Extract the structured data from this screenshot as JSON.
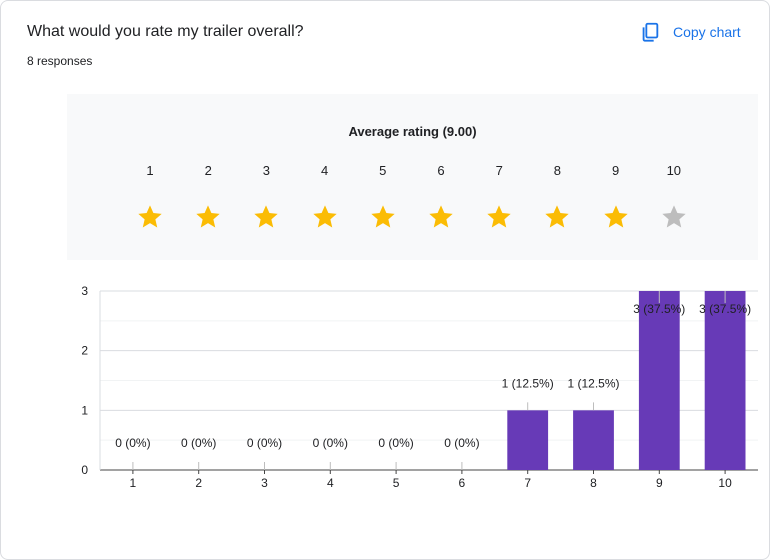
{
  "question": {
    "title": "What would you rate my trailer overall?",
    "responses": "8 responses"
  },
  "toolbar": {
    "copy_chart_label": "Copy chart",
    "copy_icon": "copy-icon"
  },
  "rating_summary": {
    "title": "Average rating (9.00)",
    "filled_stars": 9,
    "star_color": "#fbbc04",
    "empty_star_color": "#bdbdbd",
    "scale": [
      "1",
      "2",
      "3",
      "4",
      "5",
      "6",
      "7",
      "8",
      "9",
      "10"
    ]
  },
  "chart_data": {
    "type": "bar",
    "categories": [
      "1",
      "2",
      "3",
      "4",
      "5",
      "6",
      "7",
      "8",
      "9",
      "10"
    ],
    "values": [
      0,
      0,
      0,
      0,
      0,
      0,
      1,
      1,
      3,
      3
    ],
    "data_labels": [
      "0 (0%)",
      "0 (0%)",
      "0 (0%)",
      "0 (0%)",
      "0 (0%)",
      "0 (0%)",
      "1 (12.5%)",
      "1 (12.5%)",
      "3 (37.5%)",
      "3 (37.5%)"
    ],
    "yticks": [
      "0",
      "1",
      "2",
      "3"
    ],
    "ylim": [
      0,
      3
    ],
    "grid": true,
    "bar_color": "#673ab7"
  }
}
